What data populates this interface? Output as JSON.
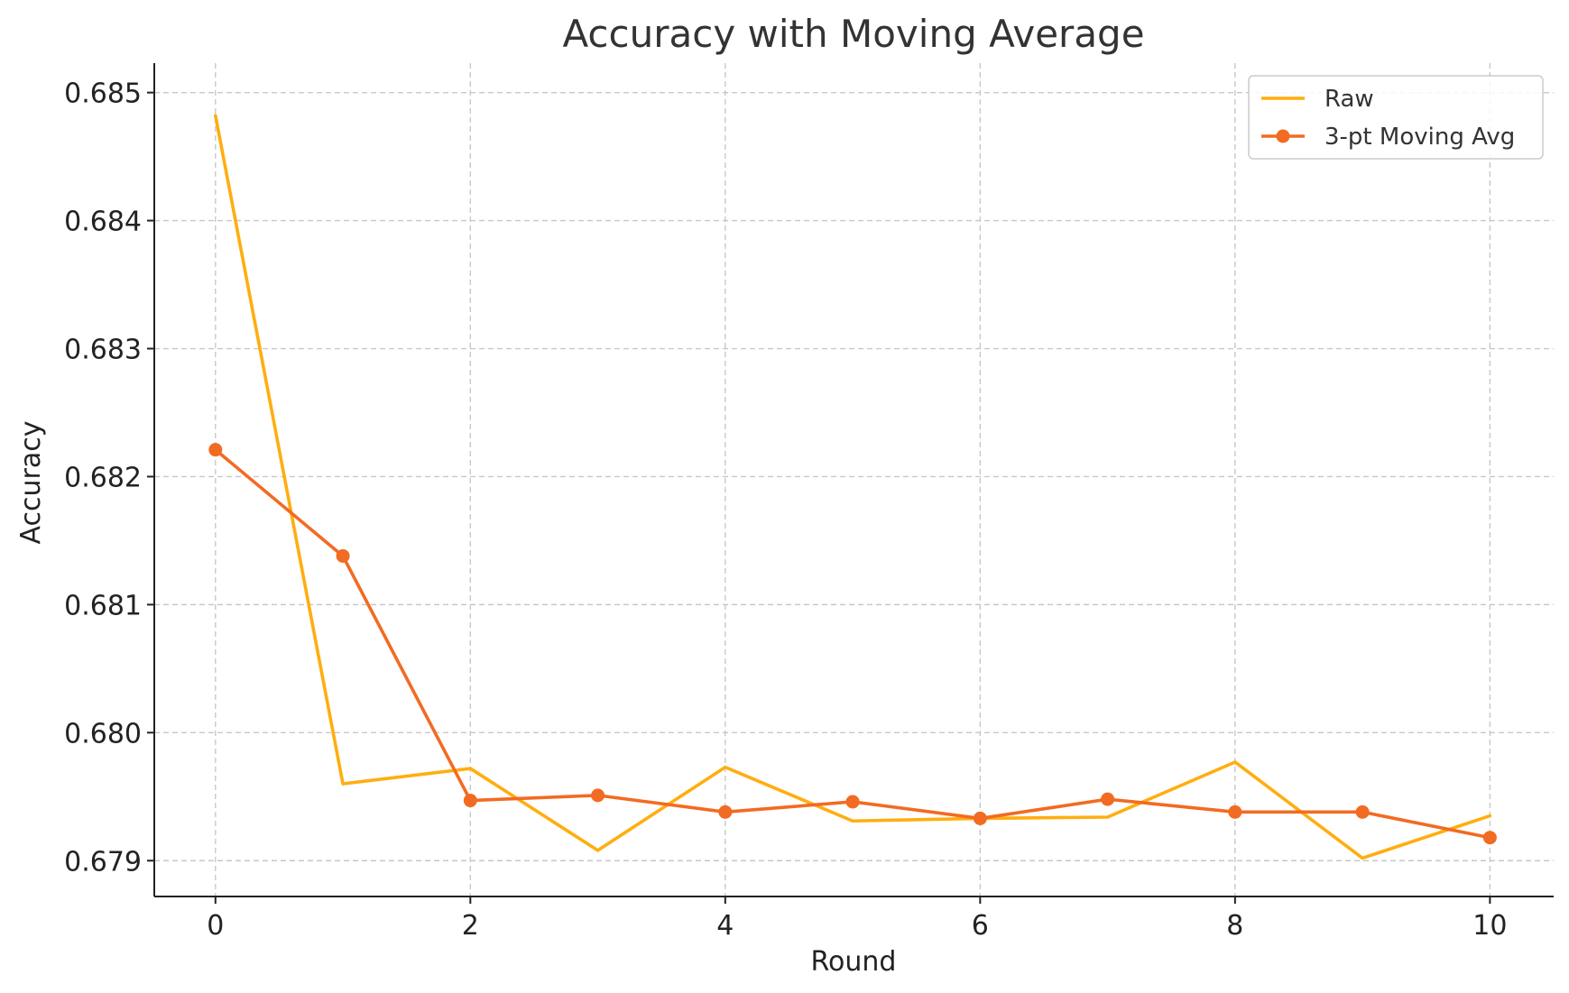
{
  "chart_data": {
    "type": "line",
    "title": "Accuracy with Moving Average",
    "xlabel": "Round",
    "ylabel": "Accuracy",
    "xlim": [
      -0.48,
      10.5
    ],
    "ylim": [
      0.67872,
      0.68523
    ],
    "xticks": [
      0,
      2,
      4,
      6,
      8,
      10
    ],
    "xtick_labels": [
      "0",
      "2",
      "4",
      "6",
      "8",
      "10"
    ],
    "yticks": [
      0.679,
      0.68,
      0.681,
      0.682,
      0.683,
      0.684,
      0.685
    ],
    "ytick_labels": [
      "0.679",
      "0.680",
      "0.681",
      "0.682",
      "0.683",
      "0.684",
      "0.685"
    ],
    "grid": true,
    "legend_position": "top-right",
    "x": [
      0,
      1,
      2,
      3,
      4,
      5,
      6,
      7,
      8,
      9,
      10
    ],
    "series": [
      {
        "name": "Raw",
        "color": "#FFAE0F",
        "markers": false,
        "values": [
          0.68482,
          0.6796,
          0.67972,
          0.67908,
          0.67973,
          0.67931,
          0.67933,
          0.67934,
          0.67977,
          0.67902,
          0.67935
        ]
      },
      {
        "name": "3-pt Moving Avg",
        "color": "#F26B22",
        "markers": true,
        "values": [
          0.68221,
          0.68138,
          0.67947,
          0.67951,
          0.67938,
          0.67946,
          0.67933,
          0.67948,
          0.67938,
          0.67938,
          0.67918
        ]
      }
    ]
  }
}
